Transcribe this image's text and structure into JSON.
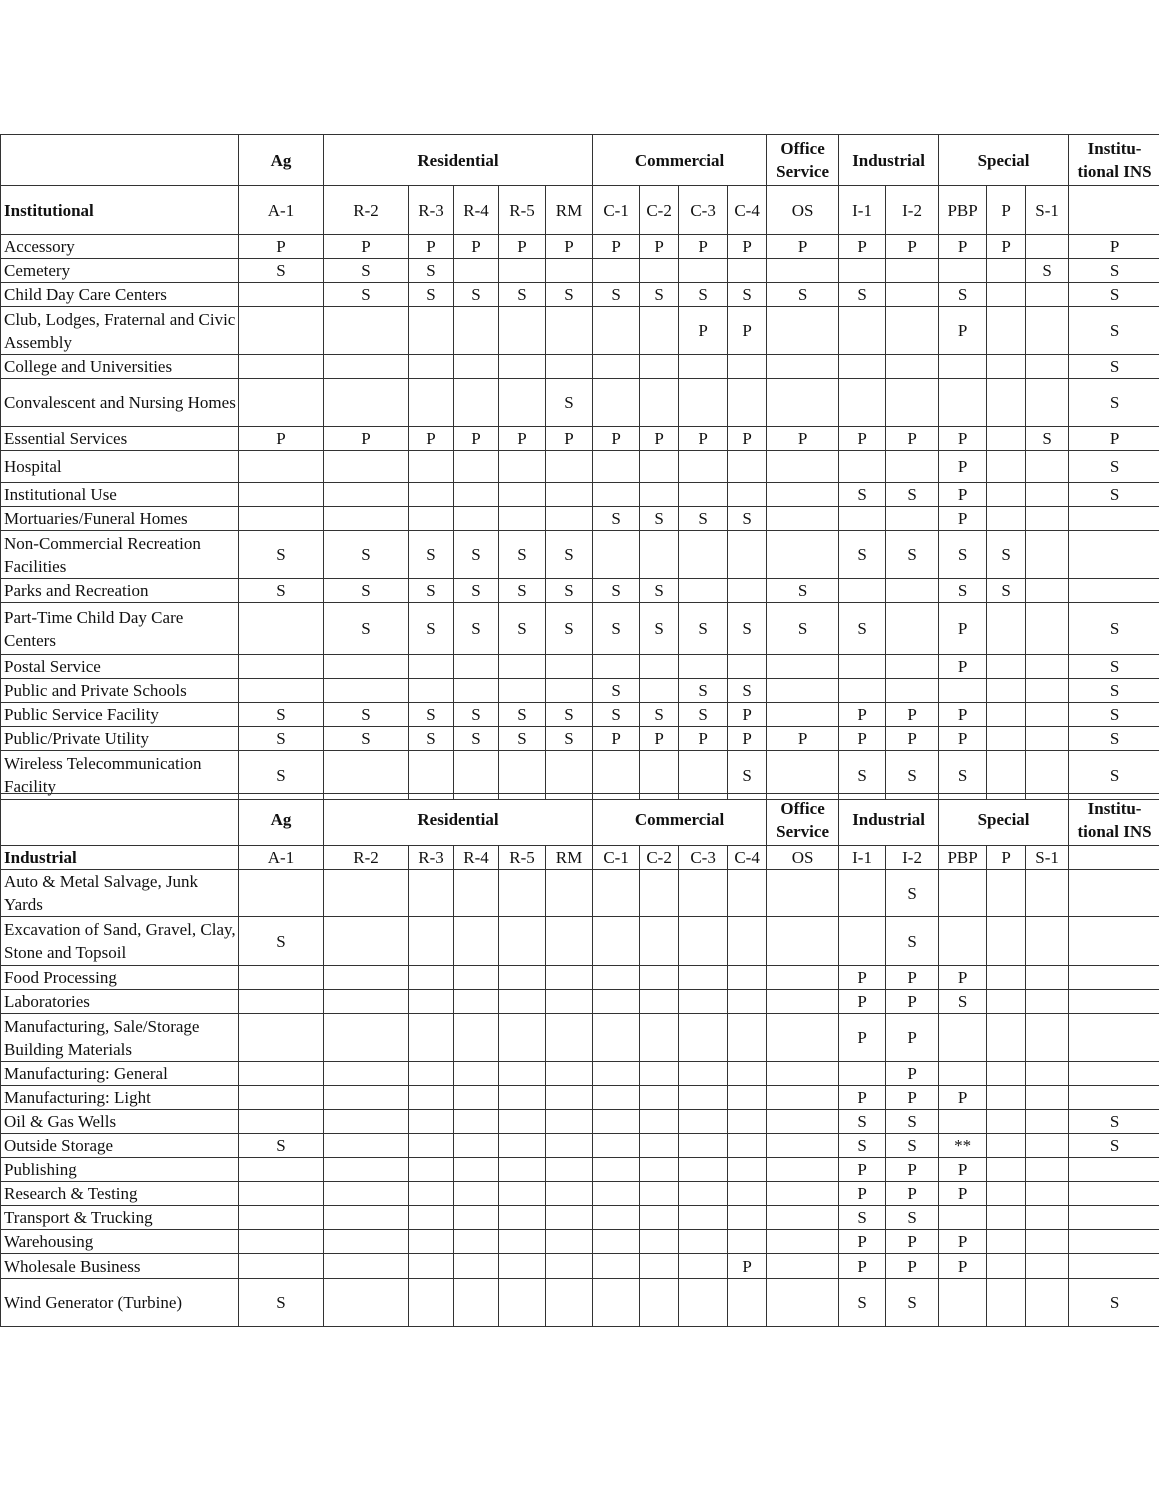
{
  "groups": [
    {
      "label": "Ag",
      "span": 1
    },
    {
      "label": "Residential",
      "span": 5
    },
    {
      "label": "Commercial",
      "span": 4
    },
    {
      "label": "Office Service",
      "span": 1
    },
    {
      "label": "Industrial",
      "span": 2
    },
    {
      "label": "Special",
      "span": 3
    },
    {
      "label": "Institu-tional INS",
      "span": 1
    }
  ],
  "columns": [
    "A-1",
    "R-2",
    "R-3",
    "R-4",
    "R-5",
    "RM",
    "C-1",
    "C-2",
    "C-3",
    "C-4",
    "OS",
    "I-1",
    "I-2",
    "PBP",
    "P",
    "S-1",
    ""
  ],
  "tables": [
    {
      "section": "Institutional",
      "rows": [
        {
          "label": "Accessory",
          "cells": [
            "P",
            "P",
            "P",
            "P",
            "P",
            "P",
            "P",
            "P",
            "P",
            "P",
            "P",
            "P",
            "P",
            "P",
            "P",
            "",
            "P"
          ]
        },
        {
          "label": "Cemetery",
          "cells": [
            "S",
            "S",
            "S",
            "",
            "",
            "",
            "",
            "",
            "",
            "",
            "",
            "",
            "",
            "",
            "",
            "S",
            "S"
          ]
        },
        {
          "label": "Child Day Care Centers",
          "cells": [
            "",
            "S",
            "S",
            "S",
            "S",
            "S",
            "S",
            "S",
            "S",
            "S",
            "S",
            "S",
            "",
            "S",
            "",
            "",
            "S"
          ]
        },
        {
          "label": "Club, Lodges, Fraternal and Civic Assembly",
          "cells": [
            "",
            "",
            "",
            "",
            "",
            "",
            "",
            "",
            "P",
            "P",
            "",
            "",
            "",
            "P",
            "",
            "",
            "S"
          ]
        },
        {
          "label": "College and Universities",
          "cells": [
            "",
            "",
            "",
            "",
            "",
            "",
            "",
            "",
            "",
            "",
            "",
            "",
            "",
            "",
            "",
            "",
            "S"
          ]
        },
        {
          "label": "Convalescent and Nursing Homes",
          "cells": [
            "",
            "",
            "",
            "",
            "",
            "S",
            "",
            "",
            "",
            "",
            "",
            "",
            "",
            "",
            "",
            "",
            "S"
          ]
        },
        {
          "label": "Essential Services",
          "cells": [
            "P",
            "P",
            "P",
            "P",
            "P",
            "P",
            "P",
            "P",
            "P",
            "P",
            "P",
            "P",
            "P",
            "P",
            "",
            "S",
            "P"
          ]
        },
        {
          "label": "Hospital",
          "cells": [
            "",
            "",
            "",
            "",
            "",
            "",
            "",
            "",
            "",
            "",
            "",
            "",
            "",
            "P",
            "",
            "",
            "S"
          ]
        },
        {
          "label": "Institutional Use",
          "cells": [
            "",
            "",
            "",
            "",
            "",
            "",
            "",
            "",
            "",
            "",
            "",
            "S",
            "S",
            "P",
            "",
            "",
            "S"
          ]
        },
        {
          "label": "Mortuaries/Funeral Homes",
          "cells": [
            "",
            "",
            "",
            "",
            "",
            "",
            "S",
            "S",
            "S",
            "S",
            "",
            "",
            "",
            "P",
            "",
            "",
            ""
          ]
        },
        {
          "label": "Non-Commercial Recreation Facilities",
          "cells": [
            "S",
            "S",
            "S",
            "S",
            "S",
            "S",
            "",
            "",
            "",
            "",
            "",
            "S",
            "S",
            "S",
            "S",
            "",
            ""
          ]
        },
        {
          "label": "Parks and Recreation",
          "cells": [
            "S",
            "S",
            "S",
            "S",
            "S",
            "S",
            "S",
            "S",
            "",
            "",
            "S",
            "",
            "",
            "S",
            "S",
            "",
            ""
          ]
        },
        {
          "label": "Part-Time Child Day Care Centers",
          "cells": [
            "",
            "S",
            "S",
            "S",
            "S",
            "S",
            "S",
            "S",
            "S",
            "S",
            "S",
            "S",
            "",
            "P",
            "",
            "",
            "S"
          ]
        },
        {
          "label": "Postal Service",
          "cells": [
            "",
            "",
            "",
            "",
            "",
            "",
            "",
            "",
            "",
            "",
            "",
            "",
            "",
            "P",
            "",
            "",
            "S"
          ]
        },
        {
          "label": "Public and Private Schools",
          "cells": [
            "",
            "",
            "",
            "",
            "",
            "",
            "S",
            "",
            "S",
            "S",
            "",
            "",
            "",
            "",
            "",
            "",
            "S"
          ]
        },
        {
          "label": "Public Service Facility",
          "cells": [
            "S",
            "S",
            "S",
            "S",
            "S",
            "S",
            "S",
            "S",
            "S",
            "P",
            "",
            "P",
            "P",
            "P",
            "",
            "",
            "S"
          ]
        },
        {
          "label": "Public/Private Utility",
          "cells": [
            "S",
            "S",
            "S",
            "S",
            "S",
            "S",
            "P",
            "P",
            "P",
            "P",
            "P",
            "P",
            "P",
            "P",
            "",
            "",
            "S"
          ]
        },
        {
          "label": "Wireless Telecommunication Facility",
          "cells": [
            "S",
            "",
            "",
            "",
            "",
            "",
            "",
            "",
            "",
            "S",
            "",
            "S",
            "S",
            "S",
            "",
            "",
            "S"
          ]
        }
      ]
    },
    {
      "section": "Industrial",
      "rows": [
        {
          "label": "Auto & Metal Salvage, Junk Yards",
          "cells": [
            "",
            "",
            "",
            "",
            "",
            "",
            "",
            "",
            "",
            "",
            "",
            "",
            "S",
            "",
            "",
            "",
            ""
          ]
        },
        {
          "label": "Excavation of Sand, Gravel, Clay, Stone and Topsoil",
          "cells": [
            "S",
            "",
            "",
            "",
            "",
            "",
            "",
            "",
            "",
            "",
            "",
            "",
            "S",
            "",
            "",
            "",
            ""
          ]
        },
        {
          "label": "Food Processing",
          "cells": [
            "",
            "",
            "",
            "",
            "",
            "",
            "",
            "",
            "",
            "",
            "",
            "P",
            "P",
            "P",
            "",
            "",
            ""
          ]
        },
        {
          "label": "Laboratories",
          "cells": [
            "",
            "",
            "",
            "",
            "",
            "",
            "",
            "",
            "",
            "",
            "",
            "P",
            "P",
            "S",
            "",
            "",
            ""
          ]
        },
        {
          "label": "Manufacturing, Sale/Storage Building Materials",
          "cells": [
            "",
            "",
            "",
            "",
            "",
            "",
            "",
            "",
            "",
            "",
            "",
            "P",
            "P",
            "",
            "",
            "",
            ""
          ]
        },
        {
          "label": "Manufacturing: General",
          "cells": [
            "",
            "",
            "",
            "",
            "",
            "",
            "",
            "",
            "",
            "",
            "",
            "",
            "P",
            "",
            "",
            "",
            ""
          ]
        },
        {
          "label": "Manufacturing: Light",
          "cells": [
            "",
            "",
            "",
            "",
            "",
            "",
            "",
            "",
            "",
            "",
            "",
            "P",
            "P",
            "P",
            "",
            "",
            ""
          ]
        },
        {
          "label": "Oil & Gas Wells",
          "cells": [
            "",
            "",
            "",
            "",
            "",
            "",
            "",
            "",
            "",
            "",
            "",
            "S",
            "S",
            "",
            "",
            "",
            "S"
          ]
        },
        {
          "label": "Outside Storage",
          "cells": [
            "S",
            "",
            "",
            "",
            "",
            "",
            "",
            "",
            "",
            "",
            "",
            "S",
            "S",
            "**",
            "",
            "",
            "S"
          ]
        },
        {
          "label": "Publishing",
          "cells": [
            "",
            "",
            "",
            "",
            "",
            "",
            "",
            "",
            "",
            "",
            "",
            "P",
            "P",
            "P",
            "",
            "",
            ""
          ]
        },
        {
          "label": "Research & Testing",
          "cells": [
            "",
            "",
            "",
            "",
            "",
            "",
            "",
            "",
            "",
            "",
            "",
            "P",
            "P",
            "P",
            "",
            "",
            ""
          ]
        },
        {
          "label": "Transport & Trucking",
          "cells": [
            "",
            "",
            "",
            "",
            "",
            "",
            "",
            "",
            "",
            "",
            "",
            "S",
            "S",
            "",
            "",
            "",
            ""
          ]
        },
        {
          "label": "Warehousing",
          "cells": [
            "",
            "",
            "",
            "",
            "",
            "",
            "",
            "",
            "",
            "",
            "",
            "P",
            "P",
            "P",
            "",
            "",
            ""
          ]
        },
        {
          "label": "Wholesale Business",
          "cells": [
            "",
            "",
            "",
            "",
            "",
            "",
            "",
            "",
            "",
            "P",
            "",
            "P",
            "P",
            "P",
            "",
            "",
            ""
          ]
        },
        {
          "label": "Wind Generator (Turbine)",
          "cells": [
            "S",
            "",
            "",
            "",
            "",
            "",
            "",
            "",
            "",
            "",
            "",
            "S",
            "S",
            "",
            "",
            "",
            "S"
          ]
        }
      ]
    }
  ]
}
